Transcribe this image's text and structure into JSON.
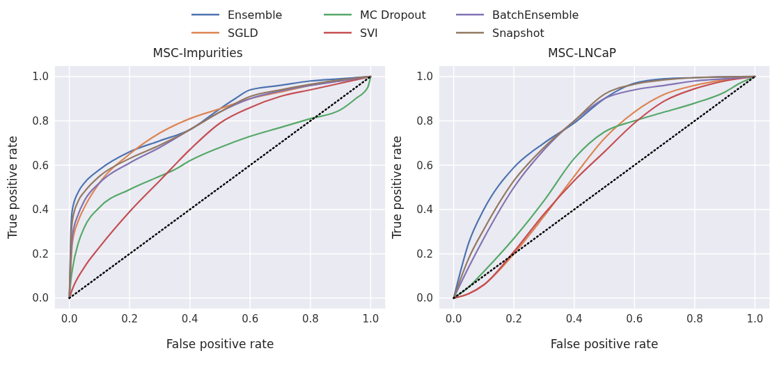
{
  "chart_data": [
    {
      "type": "line",
      "title": "MSC-Impurities",
      "xlabel": "False positive rate",
      "ylabel": "True positive rate",
      "xlim": [
        -0.05,
        1.05
      ],
      "ylim": [
        -0.05,
        1.05
      ],
      "xticks": [
        {
          "value": 0,
          "label": "0.0"
        },
        {
          "value": 0.2,
          "label": "0.2"
        },
        {
          "value": 0.4,
          "label": "0.4"
        },
        {
          "value": 0.6,
          "label": "0.6"
        },
        {
          "value": 0.8,
          "label": "0.8"
        },
        {
          "value": 1,
          "label": "1.0"
        }
      ],
      "yticks": [
        {
          "value": 0,
          "label": "0.0"
        },
        {
          "value": 0.2,
          "label": "0.2"
        },
        {
          "value": 0.4,
          "label": "0.4"
        },
        {
          "value": 0.6,
          "label": "0.6"
        },
        {
          "value": 0.8,
          "label": "0.8"
        },
        {
          "value": 1,
          "label": "1.0"
        }
      ],
      "grid": true,
      "legend": "top",
      "marker": "none",
      "line_style": "solid",
      "series": [
        {
          "name": "Ensemble",
          "color": "#4c72b0",
          "x": [
            0,
            0.005,
            0.01,
            0.03,
            0.05,
            0.1,
            0.2,
            0.3,
            0.4,
            0.5,
            0.55,
            0.6,
            0.7,
            0.8,
            0.9,
            1
          ],
          "values": [
            0,
            0.3,
            0.4,
            0.48,
            0.52,
            0.58,
            0.66,
            0.71,
            0.76,
            0.855,
            0.9,
            0.94,
            0.96,
            0.98,
            0.99,
            1
          ]
        },
        {
          "name": "SGLD",
          "color": "#dd8452",
          "x": [
            0,
            0.01,
            0.03,
            0.05,
            0.1,
            0.2,
            0.3,
            0.4,
            0.5,
            0.6,
            0.7,
            0.8,
            0.9,
            1
          ],
          "values": [
            0,
            0.25,
            0.35,
            0.41,
            0.52,
            0.65,
            0.745,
            0.81,
            0.855,
            0.9,
            0.93,
            0.96,
            0.98,
            1
          ]
        },
        {
          "name": "MC Dropout",
          "color": "#55a868",
          "x": [
            0,
            0.005,
            0.01,
            0.03,
            0.05,
            0.1,
            0.2,
            0.3,
            0.35,
            0.4,
            0.5,
            0.6,
            0.7,
            0.8,
            0.9,
            0.95,
            0.99,
            1
          ],
          "values": [
            0,
            0.08,
            0.13,
            0.25,
            0.32,
            0.41,
            0.49,
            0.55,
            0.58,
            0.62,
            0.68,
            0.73,
            0.77,
            0.81,
            0.85,
            0.9,
            0.95,
            1
          ]
        },
        {
          "name": "SVI",
          "color": "#c44e52",
          "x": [
            0,
            0.01,
            0.05,
            0.1,
            0.2,
            0.3,
            0.4,
            0.5,
            0.6,
            0.7,
            0.8,
            0.9,
            1
          ],
          "values": [
            0,
            0.04,
            0.14,
            0.23,
            0.39,
            0.53,
            0.67,
            0.79,
            0.86,
            0.91,
            0.94,
            0.97,
            1
          ]
        },
        {
          "name": "BatchEnsemble",
          "color": "#8172b3",
          "x": [
            0,
            0.01,
            0.03,
            0.05,
            0.1,
            0.2,
            0.3,
            0.4,
            0.5,
            0.6,
            0.7,
            0.8,
            0.9,
            1
          ],
          "values": [
            0,
            0.28,
            0.38,
            0.44,
            0.52,
            0.61,
            0.68,
            0.76,
            0.84,
            0.9,
            0.935,
            0.96,
            0.98,
            1
          ]
        },
        {
          "name": "Snapshot",
          "color": "#937860",
          "x": [
            0,
            0.005,
            0.01,
            0.03,
            0.05,
            0.1,
            0.2,
            0.3,
            0.4,
            0.5,
            0.6,
            0.7,
            0.8,
            0.9,
            1
          ],
          "values": [
            0,
            0.25,
            0.35,
            0.44,
            0.48,
            0.55,
            0.63,
            0.69,
            0.76,
            0.84,
            0.91,
            0.94,
            0.965,
            0.985,
            1
          ]
        },
        {
          "type": "line",
          "color": "#000000",
          "line_style": "dotted",
          "x": [
            0,
            1
          ],
          "values": [
            0,
            1
          ]
        }
      ]
    },
    {
      "type": "line",
      "title": "MSC-LNCaP",
      "xlabel": "False positive rate",
      "ylabel": "True positive rate",
      "xlim": [
        -0.05,
        1.05
      ],
      "ylim": [
        -0.05,
        1.05
      ],
      "xticks": [
        {
          "value": 0,
          "label": "0.0"
        },
        {
          "value": 0.2,
          "label": "0.2"
        },
        {
          "value": 0.4,
          "label": "0.4"
        },
        {
          "value": 0.6,
          "label": "0.6"
        },
        {
          "value": 0.8,
          "label": "0.8"
        },
        {
          "value": 1,
          "label": "1.0"
        }
      ],
      "yticks": [
        {
          "value": 0,
          "label": "0.0"
        },
        {
          "value": 0.2,
          "label": "0.2"
        },
        {
          "value": 0.4,
          "label": "0.4"
        },
        {
          "value": 0.6,
          "label": "0.6"
        },
        {
          "value": 0.8,
          "label": "0.8"
        },
        {
          "value": 1,
          "label": "1.0"
        }
      ],
      "grid": true,
      "marker": "none",
      "line_style": "solid",
      "series": [
        {
          "color": "#4c72b0",
          "x": [
            0,
            0.05,
            0.1,
            0.2,
            0.3,
            0.4,
            0.5,
            0.6,
            0.7,
            0.8,
            1
          ],
          "values": [
            0,
            0.25,
            0.4,
            0.59,
            0.7,
            0.79,
            0.9,
            0.97,
            0.99,
            0.995,
            1
          ]
        },
        {
          "color": "#dd8452",
          "x": [
            0,
            0.05,
            0.1,
            0.2,
            0.3,
            0.4,
            0.5,
            0.6,
            0.7,
            0.8,
            0.9,
            1
          ],
          "values": [
            0,
            0.02,
            0.06,
            0.2,
            0.37,
            0.55,
            0.72,
            0.84,
            0.92,
            0.96,
            0.985,
            1
          ]
        },
        {
          "color": "#55a868",
          "x": [
            0,
            0.05,
            0.1,
            0.2,
            0.3,
            0.4,
            0.5,
            0.6,
            0.7,
            0.8,
            0.9,
            0.95,
            1
          ],
          "values": [
            0,
            0.05,
            0.12,
            0.27,
            0.44,
            0.63,
            0.75,
            0.8,
            0.84,
            0.88,
            0.93,
            0.97,
            1
          ]
        },
        {
          "color": "#c44e52",
          "x": [
            0,
            0.05,
            0.1,
            0.2,
            0.3,
            0.4,
            0.5,
            0.6,
            0.7,
            0.8,
            0.9,
            1
          ],
          "values": [
            0,
            0.02,
            0.06,
            0.21,
            0.38,
            0.53,
            0.66,
            0.79,
            0.89,
            0.945,
            0.98,
            1
          ]
        },
        {
          "color": "#8172b3",
          "x": [
            0,
            0.05,
            0.1,
            0.2,
            0.3,
            0.4,
            0.5,
            0.6,
            0.7,
            0.8,
            0.9,
            1
          ],
          "values": [
            0,
            0.14,
            0.27,
            0.5,
            0.67,
            0.8,
            0.9,
            0.94,
            0.96,
            0.98,
            0.99,
            1
          ]
        },
        {
          "color": "#937860",
          "x": [
            0,
            0.05,
            0.1,
            0.2,
            0.3,
            0.4,
            0.5,
            0.6,
            0.7,
            0.8,
            1
          ],
          "values": [
            0,
            0.18,
            0.31,
            0.53,
            0.68,
            0.8,
            0.92,
            0.965,
            0.985,
            0.995,
            1
          ]
        },
        {
          "type": "line",
          "color": "#000000",
          "line_style": "dotted",
          "x": [
            0,
            1
          ],
          "values": [
            0,
            1
          ]
        }
      ]
    }
  ]
}
